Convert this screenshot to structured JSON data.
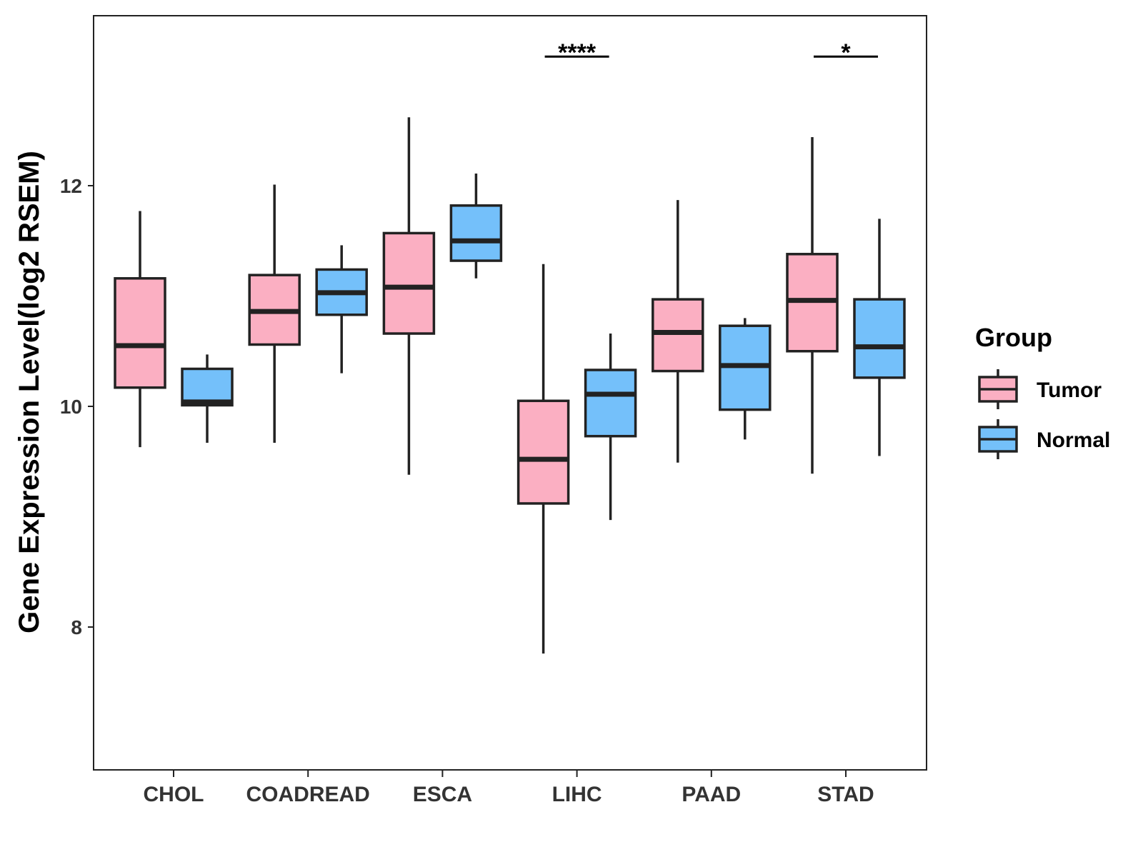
{
  "chart_data": {
    "type": "boxplot",
    "title": "",
    "xlabel": "",
    "ylabel": "Gene Expression Level(log2 RSEM)",
    "ylim": [
      6.75,
      13.55
    ],
    "yticks": [
      8,
      10,
      12
    ],
    "categories": [
      "CHOL",
      "COADREAD",
      "ESCA",
      "LIHC",
      "PAAD",
      "STAD"
    ],
    "legend": {
      "title": "Group",
      "position": "right",
      "entries": [
        {
          "name": "Tumor",
          "color": "#FBAFC2"
        },
        {
          "name": "Normal",
          "color": "#74C0FA"
        }
      ]
    },
    "series": [
      {
        "name": "Tumor",
        "color": "#FBAFC2",
        "boxes": [
          {
            "min": 9.63,
            "q1": 10.17,
            "median": 10.55,
            "q3": 11.16,
            "max": 11.77
          },
          {
            "min": 9.67,
            "q1": 10.56,
            "median": 10.86,
            "q3": 11.19,
            "max": 12.01
          },
          {
            "min": 9.38,
            "q1": 10.66,
            "median": 11.08,
            "q3": 11.57,
            "max": 12.62
          },
          {
            "min": 7.76,
            "q1": 9.12,
            "median": 9.52,
            "q3": 10.05,
            "max": 11.29
          },
          {
            "min": 9.49,
            "q1": 10.32,
            "median": 10.67,
            "q3": 10.97,
            "max": 11.87
          },
          {
            "min": 9.39,
            "q1": 10.5,
            "median": 10.96,
            "q3": 11.38,
            "max": 12.44
          }
        ]
      },
      {
        "name": "Normal",
        "color": "#74C0FA",
        "boxes": [
          {
            "min": 9.67,
            "q1": 10.01,
            "median": 10.04,
            "q3": 10.34,
            "max": 10.47
          },
          {
            "min": 10.3,
            "q1": 10.83,
            "median": 11.03,
            "q3": 11.24,
            "max": 11.46
          },
          {
            "min": 11.16,
            "q1": 11.32,
            "median": 11.5,
            "q3": 11.82,
            "max": 12.11
          },
          {
            "min": 8.97,
            "q1": 9.73,
            "median": 10.11,
            "q3": 10.33,
            "max": 10.66
          },
          {
            "min": 9.7,
            "q1": 9.97,
            "median": 10.37,
            "q3": 10.73,
            "max": 10.8
          },
          {
            "min": 9.55,
            "q1": 10.26,
            "median": 10.54,
            "q3": 10.97,
            "max": 11.7
          }
        ]
      }
    ],
    "significance": [
      {
        "category": "LIHC",
        "label": "****",
        "y": 13.17
      },
      {
        "category": "STAD",
        "label": "*",
        "y": 13.17
      }
    ]
  }
}
